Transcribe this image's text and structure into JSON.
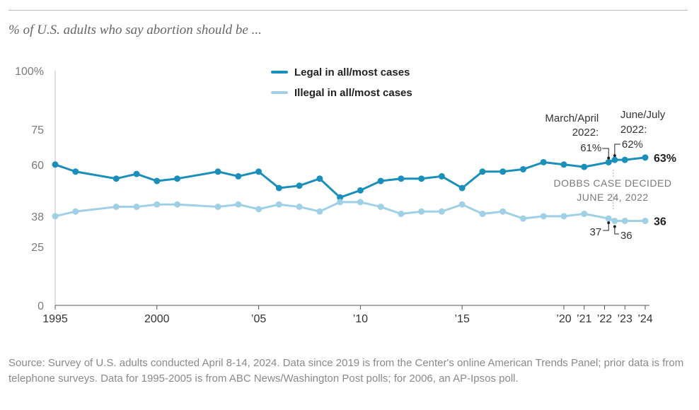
{
  "subtitle": "% of U.S. adults who say abortion should be ...",
  "source": "Source: Survey of U.S. adults conducted April 8-14, 2024. Data since 2019 is from the Center's online American Trends Panel; prior data is from telephone surveys. Data for 1995-2005 is from ABC News/Washington Post polls; for 2006, an AP-Ipsos poll.",
  "chart_data": {
    "type": "line",
    "ylim": [
      0,
      100
    ],
    "xlim": [
      1995,
      2024
    ],
    "grid": false,
    "legend_placement": "top-center",
    "y_ticks": [
      {
        "value": 100,
        "label": "100%"
      },
      {
        "value": 75,
        "label": "75"
      },
      {
        "value": 60,
        "label": "60"
      },
      {
        "value": 38,
        "label": "38"
      },
      {
        "value": 25,
        "label": "25"
      },
      {
        "value": 0,
        "label": "0"
      }
    ],
    "x_ticks": [
      {
        "value": 1995,
        "label": "1995"
      },
      {
        "value": 2000,
        "label": "2000"
      },
      {
        "value": 2005,
        "label": "’05"
      },
      {
        "value": 2010,
        "label": "’10"
      },
      {
        "value": 2015,
        "label": "’15"
      },
      {
        "value": 2020,
        "label": "’20"
      },
      {
        "value": 2021,
        "label": "’21"
      },
      {
        "value": 2022,
        "label": "’22"
      },
      {
        "value": 2023,
        "label": "’23"
      },
      {
        "value": 2024,
        "label": "’24"
      }
    ],
    "series": [
      {
        "name": "Legal in all/most cases",
        "color": "#1a8fba",
        "end_label": "63%",
        "points": [
          [
            1995,
            60
          ],
          [
            1996,
            57
          ],
          [
            1998,
            54
          ],
          [
            1999,
            56
          ],
          [
            2000,
            53
          ],
          [
            2001,
            54
          ],
          [
            2003,
            57
          ],
          [
            2004,
            55
          ],
          [
            2005,
            57
          ],
          [
            2006,
            50
          ],
          [
            2007,
            51
          ],
          [
            2008,
            54
          ],
          [
            2009,
            46
          ],
          [
            2010,
            49
          ],
          [
            2011,
            53
          ],
          [
            2012,
            54
          ],
          [
            2013,
            54
          ],
          [
            2014,
            55
          ],
          [
            2015,
            50
          ],
          [
            2016,
            57
          ],
          [
            2017,
            57
          ],
          [
            2018,
            58
          ],
          [
            2019,
            61
          ],
          [
            2020,
            60
          ],
          [
            2021,
            59
          ],
          [
            2022.2,
            61
          ],
          [
            2022.5,
            62
          ],
          [
            2023,
            62
          ],
          [
            2024,
            63
          ]
        ]
      },
      {
        "name": "Illegal in all/most cases",
        "color": "#9fd0e6",
        "end_label": "36",
        "points": [
          [
            1995,
            38
          ],
          [
            1996,
            40
          ],
          [
            1998,
            42
          ],
          [
            1999,
            42
          ],
          [
            2000,
            43
          ],
          [
            2001,
            43
          ],
          [
            2003,
            42
          ],
          [
            2004,
            43
          ],
          [
            2005,
            41
          ],
          [
            2006,
            43
          ],
          [
            2007,
            42
          ],
          [
            2008,
            40
          ],
          [
            2009,
            44
          ],
          [
            2010,
            44
          ],
          [
            2011,
            42
          ],
          [
            2012,
            39
          ],
          [
            2013,
            40
          ],
          [
            2014,
            40
          ],
          [
            2015,
            43
          ],
          [
            2016,
            39
          ],
          [
            2017,
            40
          ],
          [
            2018,
            37
          ],
          [
            2019,
            38
          ],
          [
            2020,
            38
          ],
          [
            2021,
            39
          ],
          [
            2022.2,
            37
          ],
          [
            2022.5,
            36
          ],
          [
            2023,
            36
          ],
          [
            2024,
            36
          ]
        ]
      }
    ],
    "annotations": {
      "march_april_2022": "March/April 2022:",
      "march_april_legal": "61%",
      "june_july_2022": "June/July 2022:",
      "june_july_legal": "62%",
      "march_april_illegal": "37",
      "june_july_illegal": "36",
      "dobbs_line1": "DOBBS CASE DECIDED",
      "dobbs_line2": "JUNE 24, 2022"
    }
  }
}
